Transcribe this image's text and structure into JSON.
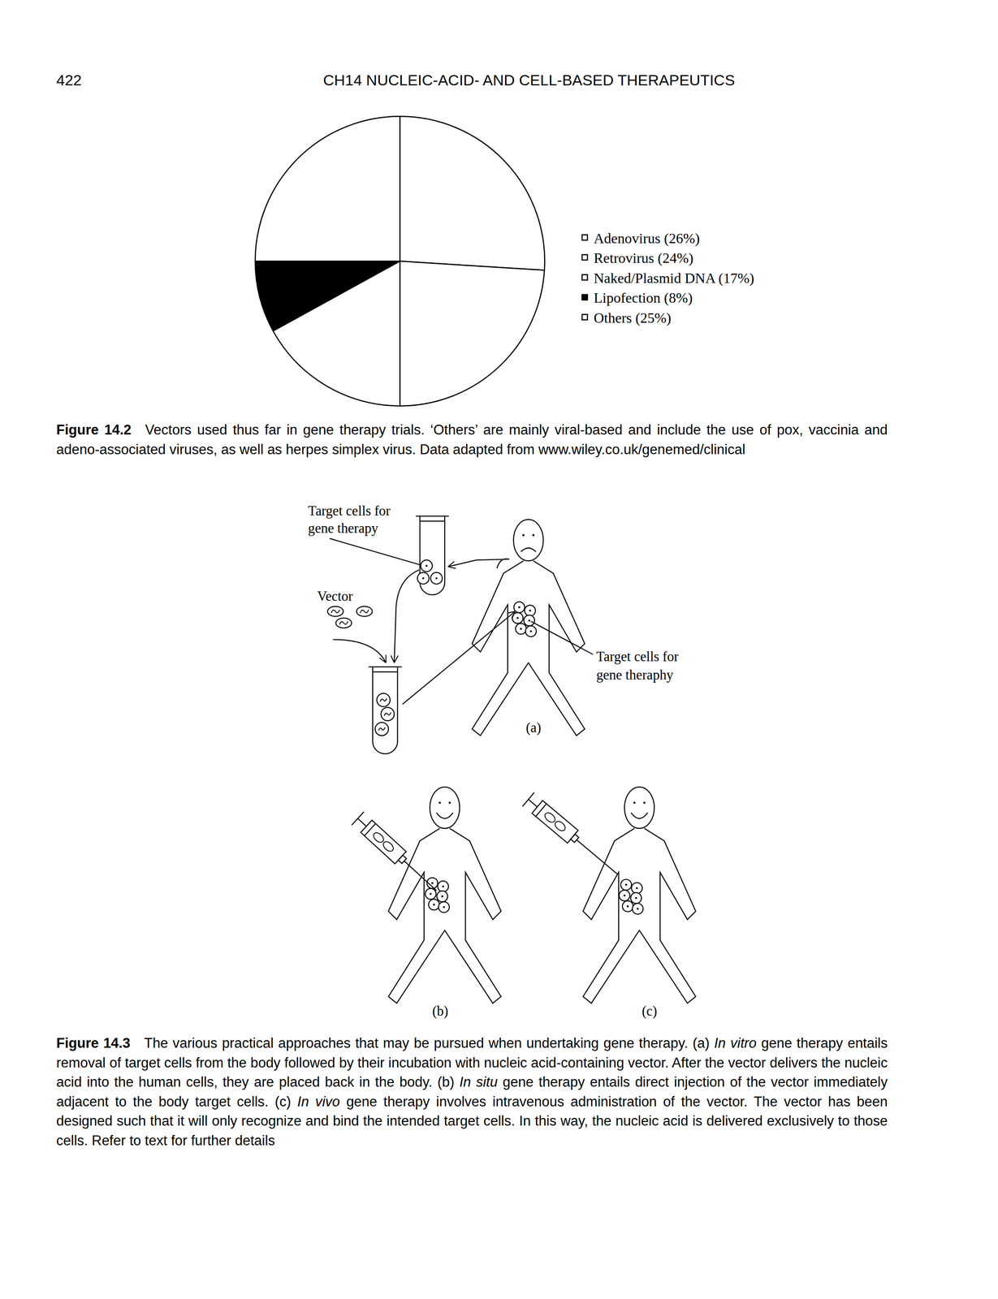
{
  "header": {
    "page_number": "422",
    "running_title": "CH14 NUCLEIC-ACID- AND CELL-BASED THERAPEUTICS"
  },
  "chart_data": {
    "type": "pie",
    "categories": [
      "Adenovirus (26%)",
      "Retrovirus (24%)",
      "Naked/Plasmid DNA (17%)",
      "Lipofection (8%)",
      "Others (25%)"
    ],
    "values": [
      26,
      24,
      17,
      8,
      25
    ],
    "colors": [
      "#ffffff",
      "#ffffff",
      "#ffffff",
      "#000000",
      "#ffffff"
    ],
    "legend": "right"
  },
  "figure_14_2_caption": {
    "label": "Figure 14.2",
    "text": "Vectors used thus far in gene therapy trials. ‘Others’ are mainly viral-based and include the use of pox, vaccinia and adeno-associated viruses, as well as herpes simplex virus. Data adapted from www.wiley.co.uk/genemed/clinical"
  },
  "figure_14_3": {
    "panel_a": {
      "label": "(a)",
      "tube_label": [
        "Target cells for",
        "gene therapy"
      ],
      "vector_label": "Vector",
      "body_label": [
        "Target cells for",
        "gene theraphy"
      ]
    },
    "panel_b": {
      "label": "(b)"
    },
    "panel_c": {
      "label": "(c)"
    },
    "caption": {
      "label": "Figure 14.3",
      "segments": [
        {
          "text": "The various practical approaches that may be pursued when undertaking gene therapy. (a) "
        },
        {
          "text": "In vitro",
          "italic": true
        },
        {
          "text": " gene therapy entails removal of target cells from the body followed by their incubation with nucleic acid-containing vector. After the vector delivers the nucleic acid into the human cells, they are placed back in the body. (b) "
        },
        {
          "text": "In situ",
          "italic": true
        },
        {
          "text": " gene therapy entails direct injection of the vector immediately adjacent to the body target cells. (c) "
        },
        {
          "text": "In vivo",
          "italic": true
        },
        {
          "text": " gene therapy involves intravenous administration of the vector. The vector has been designed such that it will only recognize and bind the intended target cells. In this way, the nucleic acid is delivered exclusively to those cells. Refer to text for further details"
        }
      ]
    }
  }
}
